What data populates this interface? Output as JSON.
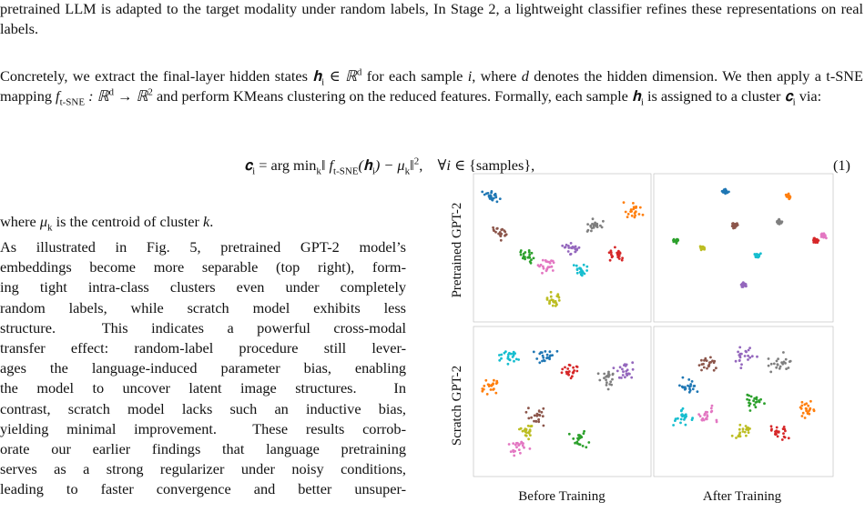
{
  "paragraphs": {
    "p1": [
      {
        "text": "pretrained LLM is adapted to the target modality under random labels, In Stage 2, a lightweight classifier refines these representations on real labels."
      }
    ],
    "p2": [
      {
        "text": "Concretely, we extract the final-layer hidden states "
      },
      {
        "math": "𝐡"
      },
      {
        "sub": "i"
      },
      {
        "math": " ∈ ℝ"
      },
      {
        "sup": "d"
      },
      {
        "text": " for each sample "
      },
      {
        "math": "i"
      },
      {
        "text": ", where "
      },
      {
        "math": "d"
      },
      {
        "text": " denotes the hidden dimension. We then apply a t-SNE mapping "
      },
      {
        "math": "f"
      },
      {
        "sub": "t-SNE"
      },
      {
        "math": " : ℝ"
      },
      {
        "sup": "d"
      },
      {
        "math": " → ℝ"
      },
      {
        "sup": "2"
      },
      {
        "text": " and perform KMeans clustering on the reduced features. Formally, each sample "
      },
      {
        "math": "𝐡"
      },
      {
        "sub": "i"
      },
      {
        "text": " is assigned to a cluster "
      },
      {
        "math": "𝐜"
      },
      {
        "sub": "i"
      },
      {
        "text": " via:"
      }
    ],
    "equation": [
      {
        "math": "𝐜"
      },
      {
        "sub": "i"
      },
      {
        "text": " = arg min"
      },
      {
        "sub": "k"
      },
      {
        "math": "‖ f"
      },
      {
        "sub": "t-SNE"
      },
      {
        "math": "(𝐡"
      },
      {
        "sub": "i"
      },
      {
        "math": ") − μ"
      },
      {
        "sub": "k"
      },
      {
        "math": "‖"
      },
      {
        "sup": "2"
      },
      {
        "text": ",    ∀"
      },
      {
        "math": "i"
      },
      {
        "text": " ∈ {samples},"
      }
    ],
    "equation_number": "(1)",
    "p3": [
      {
        "text": "where "
      },
      {
        "math": "μ"
      },
      {
        "sub": "k"
      },
      {
        "text": " is the centroid of cluster "
      },
      {
        "math": "k"
      },
      {
        "text": "."
      }
    ],
    "p4_lines": [
      "As illustrated in Fig. 5, pretrained GPT-2 model’s",
      "embeddings become more separable (top right), form-",
      "ing tight intra-class clusters even under completely",
      "random labels, while scratch model exhibits less",
      "structure.  This indicates a powerful cross-modal",
      "transfer effect: random-label procedure still lever-",
      "ages the language-induced parameter bias, enabling",
      "the model to uncover latent image structures.  In",
      "contrast, scratch model lacks such an inductive bias,",
      "yielding minimal improvement.  These results corrob-",
      "orate our earlier findings that language pretraining",
      "serves as a strong regularizer under noisy conditions,",
      "leading to faster convergence and better unsuper-"
    ]
  },
  "figure": {
    "row_labels": [
      "Pretrained GPT-2",
      "Scratch GPT-2"
    ],
    "column_labels": [
      "Before Training",
      "After Training"
    ]
  }
}
